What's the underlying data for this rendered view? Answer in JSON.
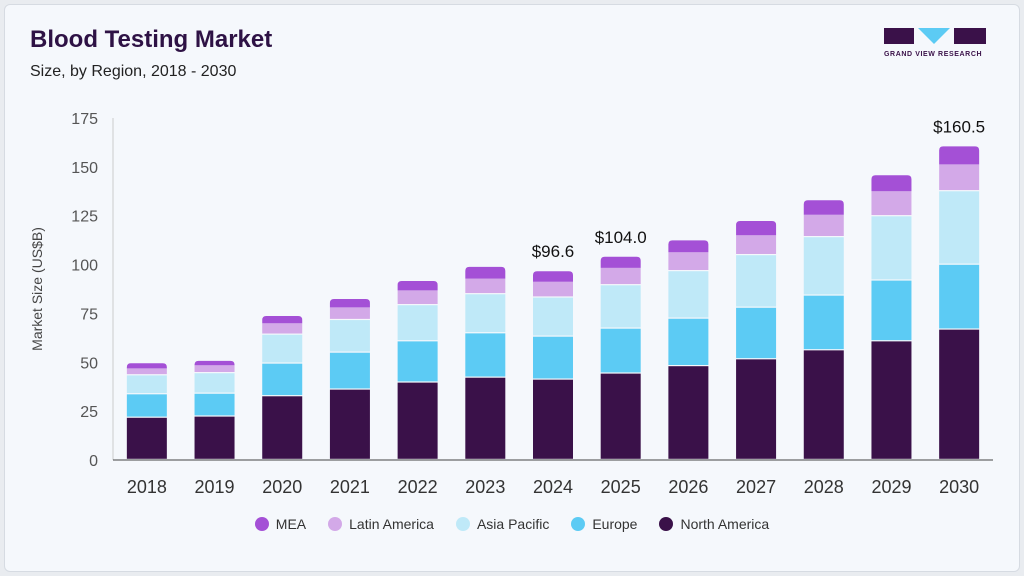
{
  "header": {
    "title": "Blood Testing Market",
    "subtitle": "Size, by Region, 2018 - 2030",
    "logo_text": "GRAND VIEW RESEARCH"
  },
  "chart_data": {
    "type": "bar",
    "stacked": true,
    "title": "Blood Testing Market",
    "subtitle": "Size, by Region, 2018 - 2030",
    "xlabel": "",
    "ylabel": "Market Size (US$B)",
    "ylim": [
      0,
      175
    ],
    "yticks": [
      0,
      25,
      50,
      75,
      100,
      125,
      150,
      175
    ],
    "grid": false,
    "legend_position": "bottom",
    "categories": [
      "2018",
      "2019",
      "2020",
      "2021",
      "2022",
      "2023",
      "2024",
      "2025",
      "2026",
      "2027",
      "2028",
      "2029",
      "2030"
    ],
    "series": [
      {
        "name": "North America",
        "color": "#3a1149",
        "values": [
          21.6,
          22.2,
          32.6,
          36.0,
          39.6,
          42.1,
          41.1,
          44.2,
          48.0,
          51.5,
          56.1,
          60.7,
          66.7
        ]
      },
      {
        "name": "Europe",
        "color": "#5ccbf4",
        "values": [
          12.0,
          11.7,
          16.7,
          18.9,
          21.1,
          22.7,
          22.0,
          23.0,
          24.3,
          26.4,
          28.0,
          31.1,
          33.2
        ]
      },
      {
        "name": "Asia Pacific",
        "color": "#bfe9f8",
        "values": [
          9.7,
          10.5,
          14.8,
          16.7,
          18.5,
          20.0,
          20.0,
          22.2,
          24.3,
          26.9,
          29.9,
          32.9,
          37.6
        ]
      },
      {
        "name": "Latin America",
        "color": "#d3a9e8",
        "values": [
          3.6,
          4.1,
          5.9,
          6.5,
          7.6,
          8.0,
          8.1,
          8.9,
          9.7,
          10.2,
          11.5,
          12.8,
          13.8
        ]
      },
      {
        "name": "MEA",
        "color": "#a450d6",
        "values": [
          2.6,
          2.2,
          3.7,
          4.3,
          4.8,
          6.0,
          5.4,
          5.7,
          6.1,
          7.3,
          7.4,
          8.2,
          9.2
        ]
      }
    ],
    "data_labels": [
      {
        "category": "2024",
        "text": "$96.6"
      },
      {
        "category": "2025",
        "text": "$104.0"
      },
      {
        "category": "2030",
        "text": "$160.5"
      }
    ],
    "legend_order": [
      "MEA",
      "Latin America",
      "Asia Pacific",
      "Europe",
      "North America"
    ]
  }
}
